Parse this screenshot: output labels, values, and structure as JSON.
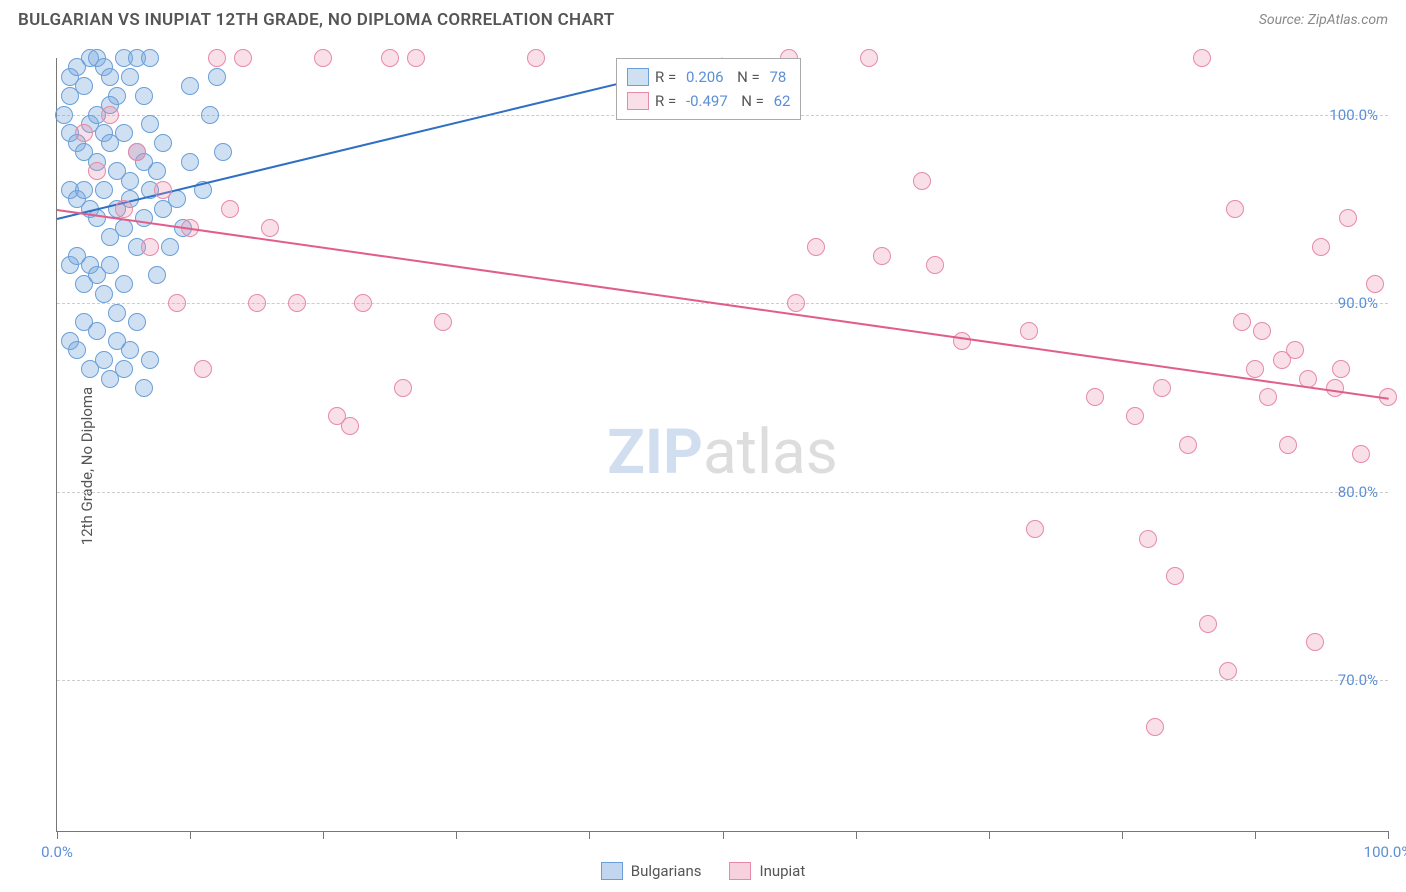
{
  "header": {
    "title": "BULGARIAN VS INUPIAT 12TH GRADE, NO DIPLOMA CORRELATION CHART",
    "source": "Source: ZipAtlas.com"
  },
  "ylabel": "12th Grade, No Diploma",
  "watermark": {
    "part1": "ZIP",
    "part2": "atlas"
  },
  "chart": {
    "type": "scatter",
    "background_color": "#ffffff",
    "grid_color": "#cccccc",
    "axis_color": "#777777",
    "xlim": [
      0,
      100
    ],
    "ylim": [
      62,
      103
    ],
    "x_ticks": [
      0,
      10,
      20,
      30,
      40,
      50,
      60,
      70,
      80,
      90,
      100
    ],
    "x_tick_labels": {
      "0": "0.0%",
      "100": "100.0%"
    },
    "y_gridlines": [
      70,
      80,
      90,
      100
    ],
    "y_tick_labels": {
      "70": "70.0%",
      "80": "80.0%",
      "90": "90.0%",
      "100": "100.0%"
    },
    "label_color": "#5b8fd6",
    "label_fontsize": 15,
    "marker_radius": 9,
    "marker_border_width": 1.5,
    "series": [
      {
        "name": "Bulgarians",
        "fill": "rgba(120,165,220,0.35)",
        "stroke": "#6a9fd8",
        "trend": {
          "x1": 0,
          "y1": 94.5,
          "x2": 50,
          "y2": 103,
          "color": "#2f6fc4",
          "width": 2
        },
        "corr": {
          "R": "0.206",
          "N": "78"
        },
        "points": [
          [
            0.5,
            100
          ],
          [
            1,
            101
          ],
          [
            1,
            102
          ],
          [
            1.5,
            102.5
          ],
          [
            2,
            101.5
          ],
          [
            2.5,
            103
          ],
          [
            3,
            103
          ],
          [
            3.5,
            102.5
          ],
          [
            4,
            102
          ],
          [
            4.5,
            101
          ],
          [
            5,
            103
          ],
          [
            5.5,
            102
          ],
          [
            6,
            103
          ],
          [
            6.5,
            101
          ],
          [
            7,
            103
          ],
          [
            1,
            99
          ],
          [
            1.5,
            98.5
          ],
          [
            2,
            98
          ],
          [
            2.5,
            99.5
          ],
          [
            3,
            97.5
          ],
          [
            3.5,
            99
          ],
          [
            4,
            98.5
          ],
          [
            4.5,
            97
          ],
          [
            5,
            99
          ],
          [
            5.5,
            96.5
          ],
          [
            6,
            98
          ],
          [
            6.5,
            97.5
          ],
          [
            7,
            99.5
          ],
          [
            7.5,
            97
          ],
          [
            8,
            98.5
          ],
          [
            1,
            96
          ],
          [
            1.5,
            95.5
          ],
          [
            2,
            96
          ],
          [
            2.5,
            95
          ],
          [
            3,
            94.5
          ],
          [
            3.5,
            96
          ],
          [
            4,
            93.5
          ],
          [
            4.5,
            95
          ],
          [
            5,
            94
          ],
          [
            5.5,
            95.5
          ],
          [
            6,
            93
          ],
          [
            6.5,
            94.5
          ],
          [
            7,
            96
          ],
          [
            7.5,
            91.5
          ],
          [
            8,
            95
          ],
          [
            8.5,
            93
          ],
          [
            1,
            92
          ],
          [
            1.5,
            92.5
          ],
          [
            2,
            91
          ],
          [
            2.5,
            92
          ],
          [
            3,
            91.5
          ],
          [
            3.5,
            90.5
          ],
          [
            4,
            92
          ],
          [
            4.5,
            89.5
          ],
          [
            5,
            91
          ],
          [
            1,
            88
          ],
          [
            1.5,
            87.5
          ],
          [
            2,
            89
          ],
          [
            2.5,
            86.5
          ],
          [
            3,
            88.5
          ],
          [
            3.5,
            87
          ],
          [
            4,
            86
          ],
          [
            4.5,
            88
          ],
          [
            5,
            86.5
          ],
          [
            5.5,
            87.5
          ],
          [
            6,
            89
          ],
          [
            6.5,
            85.5
          ],
          [
            7,
            87
          ],
          [
            3,
            100
          ],
          [
            4,
            100.5
          ],
          [
            9,
            95.5
          ],
          [
            9.5,
            94
          ],
          [
            10,
            97.5
          ],
          [
            10,
            101.5
          ],
          [
            11,
            96
          ],
          [
            11.5,
            100
          ],
          [
            12,
            102
          ],
          [
            12.5,
            98
          ]
        ]
      },
      {
        "name": "Inupiat",
        "fill": "rgba(235,140,170,0.28)",
        "stroke": "#e68aa8",
        "trend": {
          "x1": 0,
          "y1": 95,
          "x2": 100,
          "y2": 85,
          "color": "#e05f8a",
          "width": 2
        },
        "corr": {
          "R": "-0.497",
          "N": "62"
        },
        "points": [
          [
            2,
            99
          ],
          [
            3,
            97
          ],
          [
            4,
            100
          ],
          [
            5,
            95
          ],
          [
            6,
            98
          ],
          [
            7,
            93
          ],
          [
            8,
            96
          ],
          [
            9,
            90
          ],
          [
            10,
            94
          ],
          [
            11,
            86.5
          ],
          [
            12,
            103
          ],
          [
            13,
            95
          ],
          [
            14,
            103
          ],
          [
            15,
            90
          ],
          [
            16,
            94
          ],
          [
            18,
            90
          ],
          [
            20,
            103
          ],
          [
            21,
            84
          ],
          [
            22,
            83.5
          ],
          [
            23,
            90
          ],
          [
            25,
            103
          ],
          [
            26,
            85.5
          ],
          [
            27,
            103
          ],
          [
            29,
            89
          ],
          [
            36,
            103
          ],
          [
            55,
            103
          ],
          [
            55.5,
            90
          ],
          [
            57,
            93
          ],
          [
            61,
            103
          ],
          [
            62,
            92.5
          ],
          [
            65,
            96.5
          ],
          [
            66,
            92
          ],
          [
            68,
            88
          ],
          [
            73,
            88.5
          ],
          [
            73.5,
            78
          ],
          [
            78,
            85
          ],
          [
            81,
            84
          ],
          [
            82,
            77.5
          ],
          [
            82.5,
            67.5
          ],
          [
            83,
            85.5
          ],
          [
            84,
            75.5
          ],
          [
            85,
            82.5
          ],
          [
            86,
            103
          ],
          [
            86.5,
            73
          ],
          [
            88,
            70.5
          ],
          [
            88.5,
            95
          ],
          [
            89,
            89
          ],
          [
            90,
            86.5
          ],
          [
            90.5,
            88.5
          ],
          [
            91,
            85
          ],
          [
            92,
            87
          ],
          [
            92.5,
            82.5
          ],
          [
            93,
            87.5
          ],
          [
            94,
            86
          ],
          [
            94.5,
            72
          ],
          [
            95,
            93
          ],
          [
            96,
            85.5
          ],
          [
            96.5,
            86.5
          ],
          [
            97,
            94.5
          ],
          [
            98,
            82
          ],
          [
            99,
            91
          ],
          [
            100,
            85
          ]
        ]
      }
    ],
    "corr_legend": {
      "left_pct": 42,
      "top_pct": 0
    },
    "bottom_legend": [
      {
        "label": "Bulgarians",
        "fill": "rgba(120,165,220,0.45)",
        "stroke": "#6a9fd8"
      },
      {
        "label": "Inupiat",
        "fill": "rgba(235,140,170,0.4)",
        "stroke": "#e68aa8"
      }
    ]
  }
}
